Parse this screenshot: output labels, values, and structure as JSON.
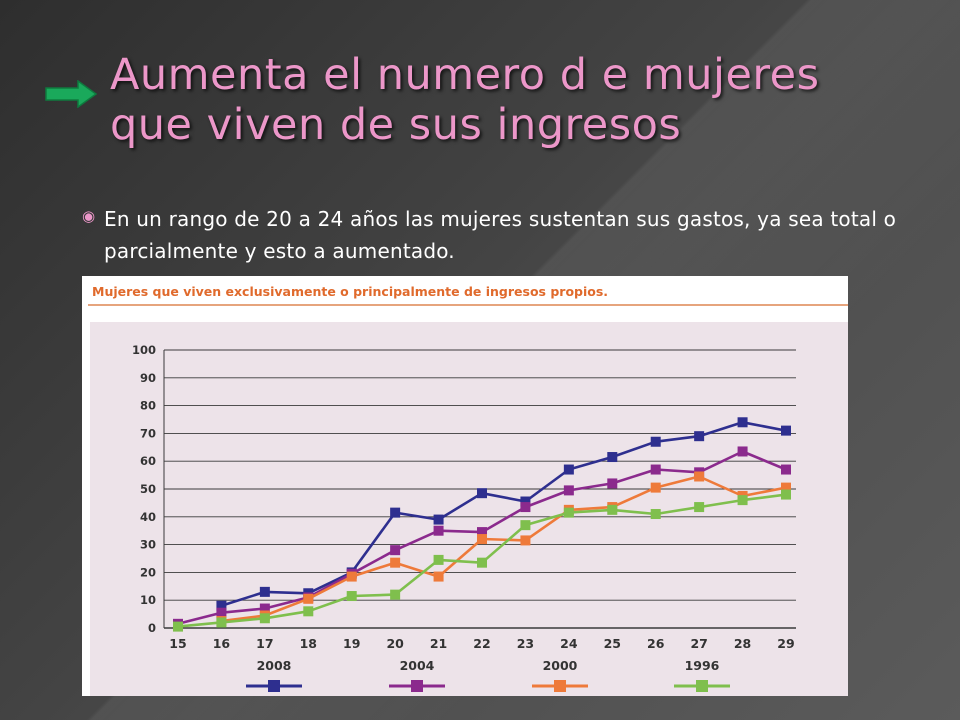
{
  "slide": {
    "title_line1": "Aumenta el  numero d e  mujeres",
    "title_line2": "que viven  de  sus  ingresos",
    "bullet": "En  un  rango  de  20 a 24  años las  mujeres  sustentan  sus gastos, ya  sea total o  parcialmente y  esto  a  aumentado.",
    "colors": {
      "title": "#ec97c9",
      "arrow": "#1aa95b",
      "text": "#ffffff"
    },
    "icons": {
      "arrow": "right-arrow-icon",
      "bullet": "circle-bullet-icon"
    }
  },
  "chart_data": {
    "type": "line",
    "title": "Mujeres que viven exclusivamente o principalmente de ingresos propios.",
    "xlabel": "",
    "ylabel": "",
    "x": [
      15,
      16,
      17,
      18,
      19,
      20,
      21,
      22,
      23,
      24,
      25,
      26,
      27,
      28,
      29
    ],
    "ylim": [
      0,
      100
    ],
    "yticks": [
      0,
      10,
      20,
      30,
      40,
      50,
      60,
      70,
      80,
      90,
      100
    ],
    "grid": true,
    "legend_position": "bottom",
    "series": [
      {
        "name": "2008",
        "color": "#2e2f8f",
        "points": [
          [
            16,
            8
          ],
          [
            17,
            13
          ],
          [
            18,
            12.5
          ],
          [
            19,
            20
          ],
          [
            20,
            41.5
          ],
          [
            21,
            39
          ],
          [
            22,
            48.5
          ],
          [
            23,
            45.5
          ],
          [
            24,
            57
          ],
          [
            25,
            61.5
          ],
          [
            26,
            67
          ],
          [
            27,
            69
          ],
          [
            28,
            74
          ],
          [
            29,
            71
          ]
        ]
      },
      {
        "name": "2004",
        "color": "#8b2a8d",
        "points": [
          [
            15,
            1.5
          ],
          [
            16,
            5.5
          ],
          [
            17,
            7
          ],
          [
            18,
            11
          ],
          [
            19,
            19.5
          ],
          [
            20,
            28
          ],
          [
            21,
            35
          ],
          [
            22,
            34.5
          ],
          [
            23,
            43.5
          ],
          [
            24,
            49.5
          ],
          [
            25,
            52
          ],
          [
            26,
            57
          ],
          [
            27,
            56
          ],
          [
            28,
            63.5
          ],
          [
            29,
            57
          ]
        ]
      },
      {
        "name": "2000",
        "color": "#ee7a3a",
        "points": [
          [
            16,
            2.5
          ],
          [
            17,
            4.5
          ],
          [
            18,
            10.5
          ],
          [
            19,
            18.5
          ],
          [
            20,
            23.5
          ],
          [
            21,
            18.5
          ],
          [
            22,
            32
          ],
          [
            23,
            31.5
          ],
          [
            24,
            42.5
          ],
          [
            25,
            43.5
          ],
          [
            26,
            50.5
          ],
          [
            27,
            54.5
          ],
          [
            28,
            47.5
          ],
          [
            29,
            50.5
          ]
        ]
      },
      {
        "name": "1996",
        "color": "#7fbf4d",
        "points": [
          [
            15,
            0.5
          ],
          [
            16,
            2
          ],
          [
            17,
            3.5
          ],
          [
            18,
            6
          ],
          [
            19,
            11.5
          ],
          [
            20,
            12
          ],
          [
            21,
            24.5
          ],
          [
            22,
            23.5
          ],
          [
            23,
            37
          ],
          [
            24,
            41.5
          ],
          [
            25,
            42.5
          ],
          [
            26,
            41
          ],
          [
            27,
            43.5
          ],
          [
            28,
            46
          ],
          [
            29,
            48
          ]
        ]
      }
    ]
  }
}
